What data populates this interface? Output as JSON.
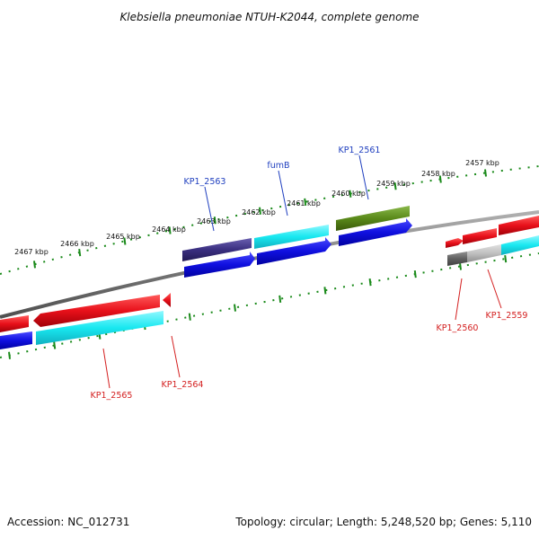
{
  "title": "Klebsiella pneumoniae NTUH-K2044, complete genome",
  "footer": {
    "accession": "Accession: NC_012731",
    "summary": "Topology: circular; Length: 5,248,520 bp; Genes: 5,110"
  },
  "scale": {
    "unit": "kbp",
    "major_ticks": [
      {
        "kbp": 2467,
        "label": "2467 kbp"
      },
      {
        "kbp": 2466,
        "label": "2466 kbp"
      },
      {
        "kbp": 2465,
        "label": "2465 kbp"
      },
      {
        "kbp": 2464,
        "label": "2464 kbp"
      },
      {
        "kbp": 2463,
        "label": "2463 kbp"
      },
      {
        "kbp": 2462,
        "label": "2462 kbp"
      },
      {
        "kbp": 2461,
        "label": "2461 kbp"
      },
      {
        "kbp": 2460,
        "label": "2460 kbp"
      },
      {
        "kbp": 2459,
        "label": "2459 kbp"
      },
      {
        "kbp": 2458,
        "label": "2458 kbp"
      },
      {
        "kbp": 2457,
        "label": "2457 kbp"
      }
    ]
  },
  "gene_labels": [
    {
      "id": "lbl-kp1-2563",
      "text": "KP1_2563",
      "color": "#1f3fbf"
    },
    {
      "id": "lbl-fumb",
      "text": "fumB",
      "color": "#1f3fbf"
    },
    {
      "id": "lbl-kp1-2561",
      "text": "KP1_2561",
      "color": "#1f3fbf"
    },
    {
      "id": "lbl-kp1-2565",
      "text": "KP1_2565",
      "color": "#d42020"
    },
    {
      "id": "lbl-kp1-2564",
      "text": "KP1_2564",
      "color": "#d42020"
    },
    {
      "id": "lbl-kp1-2560",
      "text": "KP1_2560",
      "color": "#d42020"
    },
    {
      "id": "lbl-kp1-2559",
      "text": "KP1_2559",
      "color": "#d42020"
    }
  ],
  "colors": {
    "backbone": "#7a7a7a",
    "ticks": "#1a8a1a",
    "cds_forward": "#e8101a",
    "gene_forward": "#1010e0",
    "gene_cyan": "#18e8f0",
    "gene_purple": "#3a2f80",
    "gene_olive": "#5a8a1a",
    "gene_gray": "#606060",
    "gene_lightgray": "#c0c0c0"
  }
}
